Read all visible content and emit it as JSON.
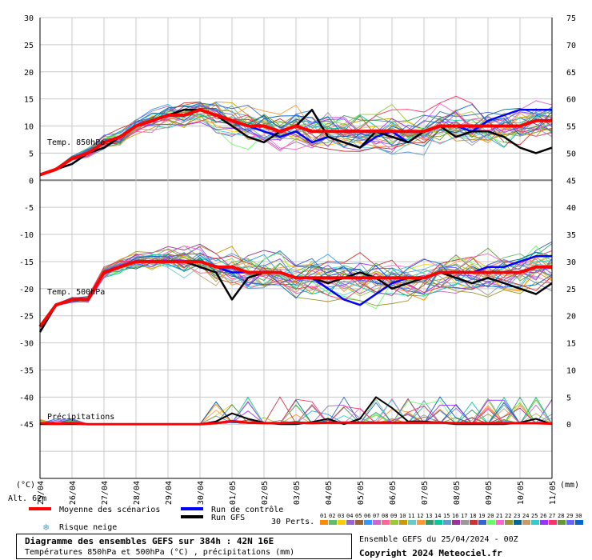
{
  "chart_data": {
    "type": "line",
    "title": "Diagramme des ensembles GEFS sur 384h : 42N 16E",
    "subtitle": "Températures 850hPa et 500hPa (°C) , précipitations (mm)",
    "run_info": "Ensemble GEFS du 25/04/2024 - 00Z",
    "copyright": "Copyright 2024 Meteociel.fr",
    "altitude_label": "Alt. 62m",
    "left_axis": {
      "unit": "(°C)",
      "ylim": [
        -55,
        30
      ],
      "ticks": [
        30,
        25,
        20,
        15,
        10,
        5,
        0,
        -5,
        -10,
        -15,
        -20,
        -25,
        -30,
        -35,
        -40,
        -45
      ]
    },
    "right_axis": {
      "unit": "(mm)",
      "ticks": [
        75,
        70,
        65,
        60,
        55,
        50,
        45,
        40,
        35,
        30,
        25,
        20,
        15,
        10,
        5,
        0
      ],
      "tick_left_values": [
        30,
        25,
        20,
        15,
        10,
        5,
        0,
        -5,
        -10,
        -15,
        -20,
        -25,
        -30,
        -35,
        -40,
        -45
      ]
    },
    "x_labels": [
      "25/04",
      "26/04",
      "27/04",
      "28/04",
      "29/04",
      "30/04",
      "01/05",
      "02/05",
      "03/05",
      "04/05",
      "05/05",
      "06/05",
      "07/05",
      "08/05",
      "09/05",
      "10/05",
      "11/05"
    ],
    "panel_labels": {
      "t850": "Temp. 850hPa",
      "t500": "Temp. 500hPa",
      "precip": "Précipitations"
    },
    "legend": {
      "mean": "Moyenne des scénarios",
      "control": "Run de contrôle",
      "gfs": "Run GFS",
      "snow": "Risque neige",
      "perts_label": "30 Perts.",
      "pert_ids": [
        "01",
        "02",
        "03",
        "04",
        "05",
        "06",
        "07",
        "08",
        "09",
        "10",
        "11",
        "12",
        "13",
        "14",
        "15",
        "16",
        "17",
        "18",
        "19",
        "20",
        "21",
        "22",
        "23",
        "24",
        "25",
        "26",
        "27",
        "28",
        "29",
        "30"
      ],
      "colors": {
        "mean": "#ff0000",
        "control": "#0000ff",
        "gfs": "#000000",
        "snow": "#4aa8e8"
      }
    },
    "pert_colors": [
      "#ff8c00",
      "#66bb66",
      "#ffcc00",
      "#9966cc",
      "#996633",
      "#3399ff",
      "#cc66cc",
      "#ff6699",
      "#99cc33",
      "#cc9900",
      "#66cccc",
      "#ff9933",
      "#339966",
      "#00cc99",
      "#6699cc",
      "#993399",
      "#999999",
      "#cc3333",
      "#3366cc",
      "#66ff66",
      "#ff66cc",
      "#999933",
      "#006699",
      "#cc9966",
      "#33cccc",
      "#9933ff",
      "#ff3366",
      "#669933",
      "#6666ff",
      "#0066cc"
    ],
    "series": [
      {
        "name": "Moyenne T850",
        "y": [
          1,
          2,
          4,
          5,
          7,
          8,
          10,
          11,
          12,
          12,
          13,
          12,
          11,
          10,
          10,
          9,
          10,
          9,
          9,
          9,
          9,
          9,
          9,
          9,
          9,
          10,
          10,
          10,
          10,
          10,
          10,
          11,
          11
        ]
      },
      {
        "name": "Contrôle T850",
        "y": [
          1,
          2,
          3,
          5,
          6,
          8,
          10,
          11,
          12,
          12,
          13,
          12,
          11,
          10,
          9,
          8,
          9,
          7,
          8,
          7,
          6,
          8,
          9,
          7,
          9,
          10,
          10,
          9,
          11,
          12,
          13,
          13,
          13
        ]
      },
      {
        "name": "GFS T850",
        "y": [
          1,
          2,
          3,
          5,
          6,
          8,
          10,
          11,
          12,
          13,
          13,
          12,
          10,
          8,
          7,
          9,
          10,
          13,
          8,
          7,
          6,
          9,
          8,
          7,
          9,
          10,
          8,
          9,
          9,
          8,
          6,
          5,
          6
        ]
      },
      {
        "name": "Moyenne T500",
        "y": [
          -27,
          -23,
          -22,
          -22,
          -17,
          -16,
          -15,
          -15,
          -15,
          -15,
          -15,
          -16,
          -16,
          -17,
          -17,
          -17,
          -18,
          -18,
          -18,
          -18,
          -18,
          -18,
          -18,
          -18,
          -18,
          -17,
          -17,
          -17,
          -17,
          -17,
          -17,
          -16,
          -16
        ]
      },
      {
        "name": "Contrôle T500",
        "y": [
          -28,
          -23,
          -22,
          -22,
          -17,
          -16,
          -15,
          -15,
          -15,
          -15,
          -15,
          -16,
          -17,
          -17,
          -17,
          -17,
          -18,
          -18,
          -20,
          -22,
          -23,
          -21,
          -19,
          -18,
          -18,
          -17,
          -17,
          -17,
          -16,
          -16,
          -15,
          -14,
          -14
        ]
      },
      {
        "name": "GFS T500",
        "y": [
          -28,
          -23,
          -22,
          -22,
          -17,
          -16,
          -15,
          -15,
          -15,
          -15,
          -16,
          -17,
          -22,
          -18,
          -17,
          -17,
          -18,
          -18,
          -19,
          -18,
          -17,
          -18,
          -20,
          -19,
          -18,
          -17,
          -18,
          -19,
          -18,
          -19,
          -20,
          -21,
          -19
        ]
      },
      {
        "name": "Moyenne Précip",
        "y": [
          0.2,
          0.1,
          0.2,
          0,
          0,
          0,
          0,
          0,
          0,
          0,
          0,
          0.2,
          0.6,
          0.3,
          0.2,
          0.2,
          0.3,
          0.2,
          0.3,
          0.3,
          0.3,
          0.3,
          0.3,
          0.3,
          0.3,
          0.3,
          0.2,
          0.2,
          0.2,
          0.2,
          0.2,
          0.2,
          0.1
        ]
      },
      {
        "name": "GFS Précip",
        "y": [
          0,
          0,
          0,
          0,
          0,
          0,
          0,
          0,
          0,
          0,
          0,
          0.5,
          2,
          1,
          0.3,
          0,
          0,
          0.4,
          1,
          0,
          1,
          5,
          3,
          0.5,
          0.5,
          0.3,
          0,
          0,
          0,
          0,
          0.3,
          1,
          0
        ]
      }
    ]
  }
}
